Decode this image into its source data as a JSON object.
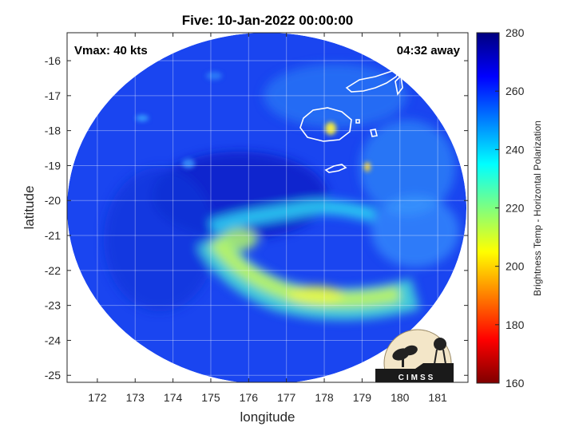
{
  "chart_data": {
    "type": "heatmap",
    "title": "Five: 10-Jan-2022 00:00:00",
    "xlabel": "longitude",
    "ylabel": "latitude",
    "xlim": [
      171.2,
      181.8
    ],
    "ylim": [
      -25.2,
      -15.2
    ],
    "x_ticks": [
      172,
      173,
      174,
      175,
      176,
      177,
      178,
      179,
      180,
      181
    ],
    "y_ticks": [
      -16,
      -17,
      -18,
      -19,
      -20,
      -21,
      -22,
      -23,
      -24,
      -25
    ],
    "grid": true,
    "annotations": {
      "vmax": "Vmax: 40 kts",
      "away": "04:32 away"
    },
    "colorbar": {
      "label": "Brightness Temp - Horizontal Polarization",
      "min": 160,
      "max": 280,
      "ticks": [
        160,
        180,
        200,
        220,
        240,
        260,
        280
      ]
    },
    "brightness_temperature_field": {
      "background_value": 258,
      "cold_features": [
        {
          "name": "inner band",
          "lon": 176.3,
          "lat": -21.0,
          "value": 228
        },
        {
          "name": "outer rainband",
          "lon": 177.5,
          "lat": -22.6,
          "value": 208
        },
        {
          "name": "band tail west",
          "lon": 174.8,
          "lat": -21.2,
          "value": 215
        },
        {
          "name": "Viti Levu cell",
          "lon": 178.1,
          "lat": -17.9,
          "value": 200
        },
        {
          "name": "Kadavu cell",
          "lon": 179.1,
          "lat": -19.0,
          "value": 205
        }
      ]
    },
    "logo": "CIMSS"
  }
}
